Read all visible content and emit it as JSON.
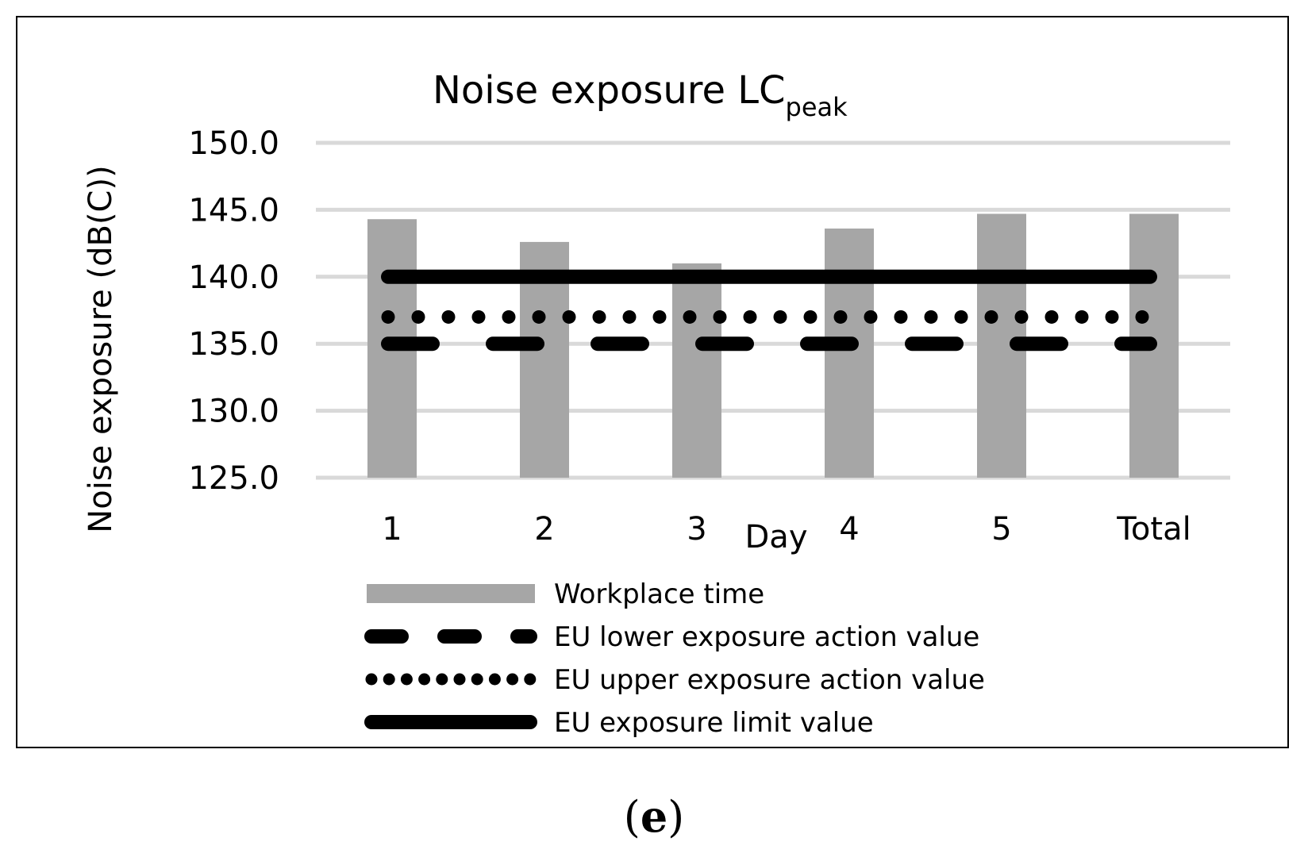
{
  "chart_data": {
    "type": "bar",
    "title": "Noise exposure LC",
    "title_subscript": "peak",
    "xlabel": "Day",
    "ylabel": "Noise exposure (dB(C))",
    "ylim": [
      125,
      150
    ],
    "yticks": [
      "125.0",
      "130.0",
      "135.0",
      "140.0",
      "145.0",
      "150.0"
    ],
    "ytick_values": [
      125,
      130,
      135,
      140,
      145,
      150
    ],
    "grid": true,
    "legend_position": "bottom",
    "categories": [
      "1",
      "2",
      "3",
      "4",
      "5",
      "Total"
    ],
    "series": [
      {
        "name": "Workplace time",
        "kind": "bar",
        "values": [
          144.3,
          142.6,
          141.0,
          143.6,
          144.7,
          144.7
        ],
        "color": "#a6a6a6"
      },
      {
        "name": "EU lower exposure action value",
        "kind": "line",
        "style": "dashed",
        "values": [
          135,
          135,
          135,
          135,
          135,
          135
        ],
        "color": "#000000"
      },
      {
        "name": "EU upper exposure action value",
        "kind": "line",
        "style": "dotted",
        "values": [
          137,
          137,
          137,
          137,
          137,
          137
        ],
        "color": "#000000"
      },
      {
        "name": "EU exposure limit value",
        "kind": "line",
        "style": "solid",
        "values": [
          140,
          140,
          140,
          140,
          140,
          140
        ],
        "color": "#000000"
      }
    ],
    "grid_color": "#d9d9d9"
  },
  "panel_label": {
    "open": "(",
    "letter": "e",
    "close": ")"
  }
}
